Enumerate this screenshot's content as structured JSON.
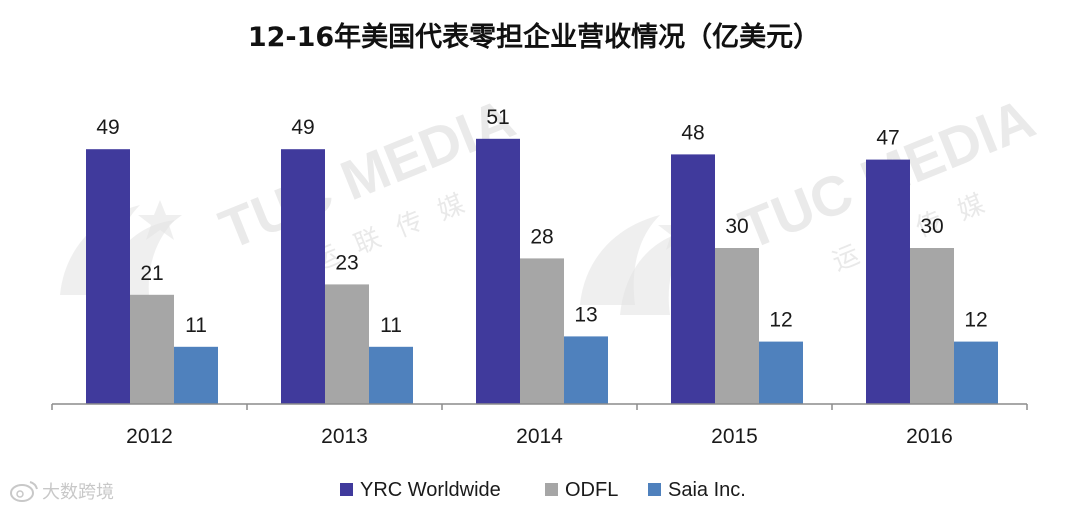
{
  "chart_data": {
    "type": "bar",
    "title": "12-16年美国代表零担企业营收情况（亿美元）",
    "categories": [
      "2012",
      "2013",
      "2014",
      "2015",
      "2016"
    ],
    "series": [
      {
        "name": "YRC Worldwide",
        "values": [
          49,
          49,
          51,
          48,
          47
        ],
        "color": "#403a9c"
      },
      {
        "name": "ODFL",
        "values": [
          21,
          23,
          28,
          30,
          30
        ],
        "color": "#a6a6a6"
      },
      {
        "name": "Saia Inc.",
        "values": [
          11,
          11,
          13,
          12,
          12
        ],
        "color": "#4f81bd"
      }
    ],
    "ylim": [
      0,
      60
    ],
    "grid": false,
    "legend_position": "bottom"
  },
  "watermark": {
    "brand": "TUC MEDIA",
    "cn": [
      "运",
      "联",
      "传",
      "媒"
    ]
  },
  "corner_mark": {
    "icon": "weibo-logo-icon",
    "text": "大数跨境"
  }
}
